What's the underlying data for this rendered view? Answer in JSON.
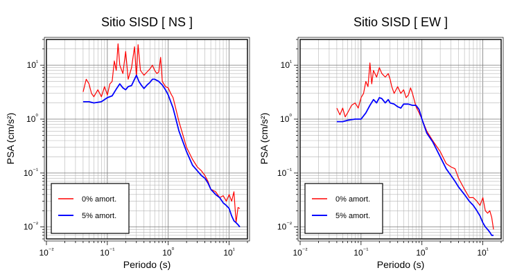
{
  "chart_data": [
    {
      "type": "line",
      "title": "Sitio SISD [ NS ]",
      "xlabel": "Periodo (s)",
      "ylabel": "PSA (cm/s²)",
      "xscale": "log",
      "yscale": "log",
      "xlim": [
        0.01,
        20
      ],
      "ylim": [
        0.006,
        30
      ],
      "xticks": [
        "10⁻²",
        "10⁻¹",
        "10⁰",
        "10¹"
      ],
      "yticks": [
        "10⁻²",
        "10⁻¹",
        "10⁰",
        "10¹"
      ],
      "grid": true,
      "legend_position": "bottom-left",
      "series": [
        {
          "name": "0% amort.",
          "color": "#ff0000",
          "x": [
            0.04,
            0.045,
            0.05,
            0.055,
            0.06,
            0.07,
            0.08,
            0.09,
            0.1,
            0.11,
            0.12,
            0.13,
            0.14,
            0.15,
            0.16,
            0.18,
            0.2,
            0.22,
            0.25,
            0.28,
            0.3,
            0.32,
            0.35,
            0.4,
            0.45,
            0.5,
            0.55,
            0.6,
            0.65,
            0.7,
            0.75,
            0.8,
            0.9,
            1.0,
            1.1,
            1.2,
            1.5,
            2.0,
            2.5,
            3.0,
            3.5,
            4.0,
            4.5,
            5.0,
            6.0,
            7.0,
            8.0,
            9.0,
            10.0,
            11.0,
            12.0,
            13.0,
            14.0,
            15.0
          ],
          "y": [
            3.2,
            5.5,
            4.5,
            3.0,
            2.6,
            3.5,
            2.6,
            4.0,
            2.8,
            4.5,
            5.0,
            12.0,
            8.0,
            25.0,
            10.0,
            7.0,
            18.0,
            5.5,
            9.0,
            22.0,
            6.0,
            24.0,
            8.0,
            6.5,
            7.5,
            8.5,
            10.0,
            8.0,
            7.0,
            7.5,
            14.0,
            5.0,
            4.0,
            3.8,
            3.0,
            2.5,
            0.9,
            0.3,
            0.18,
            0.13,
            0.11,
            0.09,
            0.07,
            0.05,
            0.045,
            0.035,
            0.038,
            0.03,
            0.04,
            0.03,
            0.045,
            0.012,
            0.023,
            0.022
          ]
        },
        {
          "name": "5% amort.",
          "color": "#0000ff",
          "x": [
            0.04,
            0.05,
            0.06,
            0.08,
            0.1,
            0.12,
            0.14,
            0.16,
            0.18,
            0.2,
            0.22,
            0.25,
            0.28,
            0.3,
            0.33,
            0.36,
            0.4,
            0.45,
            0.5,
            0.55,
            0.6,
            0.7,
            0.8,
            0.9,
            1.0,
            1.2,
            1.5,
            2.0,
            2.5,
            3.0,
            3.5,
            4.0,
            4.5,
            5.0,
            6.0,
            7.0,
            8.0,
            9.0,
            10.0,
            11.0,
            12.0,
            13.0,
            14.0,
            15.0
          ],
          "y": [
            2.1,
            2.1,
            2.0,
            2.1,
            2.5,
            2.7,
            3.6,
            4.5,
            3.8,
            3.5,
            4.0,
            4.2,
            5.5,
            6.5,
            5.0,
            4.3,
            3.7,
            4.3,
            4.8,
            5.5,
            5.5,
            5.0,
            4.3,
            3.5,
            2.8,
            1.6,
            0.6,
            0.25,
            0.14,
            0.11,
            0.09,
            0.08,
            0.065,
            0.05,
            0.04,
            0.035,
            0.028,
            0.025,
            0.022,
            0.016,
            0.013,
            0.012,
            0.011,
            0.01
          ]
        }
      ]
    },
    {
      "type": "line",
      "title": "Sitio SISD [ EW ]",
      "xlabel": "Periodo (s)",
      "ylabel": "PSA (cm/s²)",
      "xscale": "log",
      "yscale": "log",
      "xlim": [
        0.01,
        20
      ],
      "ylim": [
        0.006,
        30
      ],
      "xticks": [
        "10⁻²",
        "10⁻¹",
        "10⁰",
        "10¹"
      ],
      "yticks": [
        "10⁻²",
        "10⁻¹",
        "10⁰",
        "10¹"
      ],
      "grid": true,
      "legend_position": "bottom-left",
      "series": [
        {
          "name": "0% amort.",
          "color": "#ff0000",
          "x": [
            0.04,
            0.045,
            0.05,
            0.055,
            0.06,
            0.07,
            0.08,
            0.09,
            0.1,
            0.11,
            0.12,
            0.13,
            0.14,
            0.15,
            0.16,
            0.18,
            0.2,
            0.22,
            0.25,
            0.28,
            0.3,
            0.32,
            0.35,
            0.4,
            0.45,
            0.5,
            0.55,
            0.6,
            0.65,
            0.7,
            0.8,
            0.9,
            1.0,
            1.2,
            1.5,
            2.0,
            2.5,
            3.0,
            3.5,
            4.0,
            5.0,
            6.0,
            7.0,
            8.0,
            9.0,
            10.0,
            11.0,
            12.0,
            13.0,
            14.0,
            15.0
          ],
          "y": [
            1.6,
            1.2,
            1.6,
            1.1,
            1.3,
            1.8,
            2.0,
            1.6,
            2.5,
            3.0,
            5.0,
            4.0,
            11.0,
            4.5,
            8.0,
            6.0,
            9.0,
            7.0,
            6.0,
            7.0,
            5.5,
            4.0,
            3.0,
            4.0,
            3.0,
            3.5,
            2.5,
            2.8,
            3.8,
            3.0,
            1.7,
            1.3,
            1.0,
            0.6,
            0.4,
            0.25,
            0.15,
            0.13,
            0.12,
            0.08,
            0.05,
            0.035,
            0.035,
            0.03,
            0.025,
            0.035,
            0.02,
            0.018,
            0.02,
            0.015,
            0.009
          ]
        },
        {
          "name": "5% amort.",
          "color": "#0000ff",
          "x": [
            0.04,
            0.05,
            0.06,
            0.08,
            0.1,
            0.12,
            0.14,
            0.16,
            0.18,
            0.2,
            0.22,
            0.25,
            0.28,
            0.3,
            0.35,
            0.4,
            0.45,
            0.5,
            0.6,
            0.7,
            0.8,
            0.9,
            1.0,
            1.2,
            1.5,
            2.0,
            2.5,
            3.0,
            3.5,
            4.0,
            5.0,
            6.0,
            7.0,
            8.0,
            9.0,
            10.0,
            11.0,
            12.0,
            13.0,
            14.0,
            15.0
          ],
          "y": [
            0.9,
            0.9,
            0.95,
            1.0,
            1.0,
            1.3,
            1.8,
            2.3,
            2.0,
            2.5,
            2.4,
            2.0,
            2.3,
            2.0,
            1.9,
            1.7,
            1.6,
            1.9,
            1.9,
            1.8,
            1.8,
            1.5,
            1.0,
            0.55,
            0.38,
            0.2,
            0.12,
            0.09,
            0.07,
            0.055,
            0.04,
            0.03,
            0.025,
            0.02,
            0.016,
            0.012,
            0.01,
            0.009,
            0.008,
            0.007,
            0.007
          ]
        }
      ]
    }
  ]
}
